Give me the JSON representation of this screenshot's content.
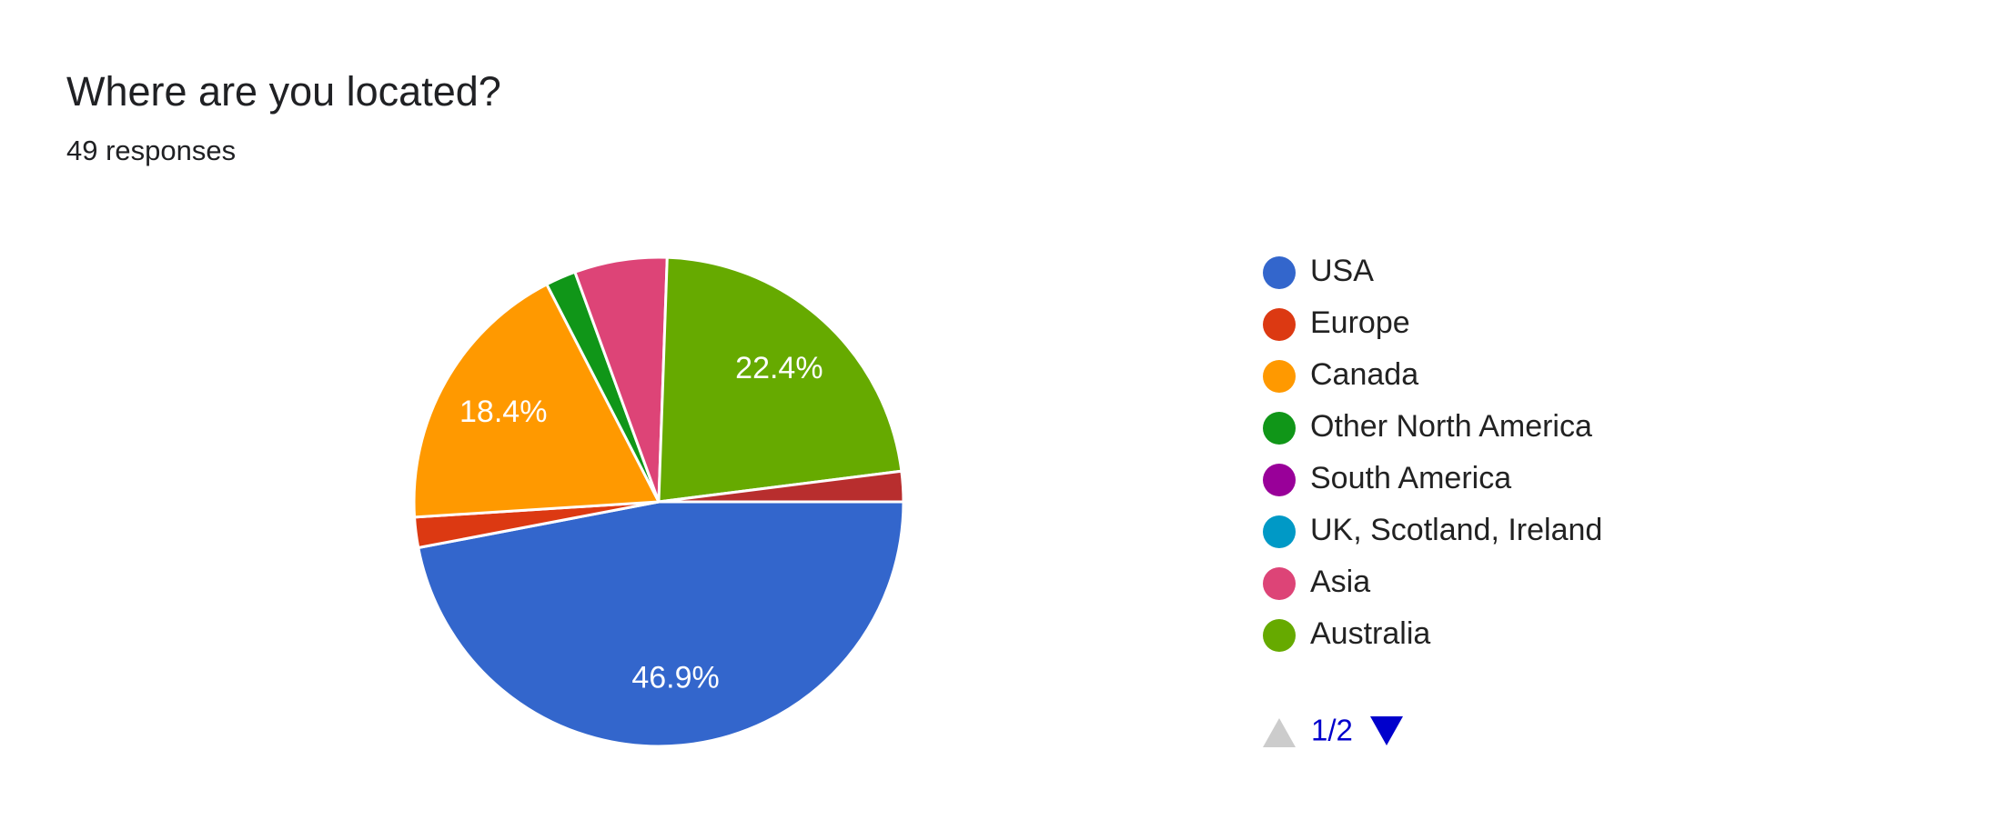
{
  "chart_data": {
    "type": "pie",
    "title": "Where are you located?",
    "subtitle": "49 responses",
    "categories": [
      "USA",
      "Europe",
      "Canada",
      "Other North America",
      "South America",
      "UK, Scotland, Ireland",
      "Asia",
      "Australia",
      null
    ],
    "values": [
      46.9,
      2.0,
      18.4,
      2.0,
      0,
      0,
      6.1,
      22.4,
      2.0
    ],
    "value_labels": [
      "46.9%",
      null,
      "18.4%",
      null,
      null,
      null,
      null,
      "22.4%",
      null
    ],
    "colors": [
      "#3366cc",
      "#dc3912",
      "#ff9900",
      "#109618",
      "#990099",
      "#0099c6",
      "#dd4477",
      "#66aa00",
      "#b82e2e"
    ],
    "legend_page": "1/2"
  }
}
